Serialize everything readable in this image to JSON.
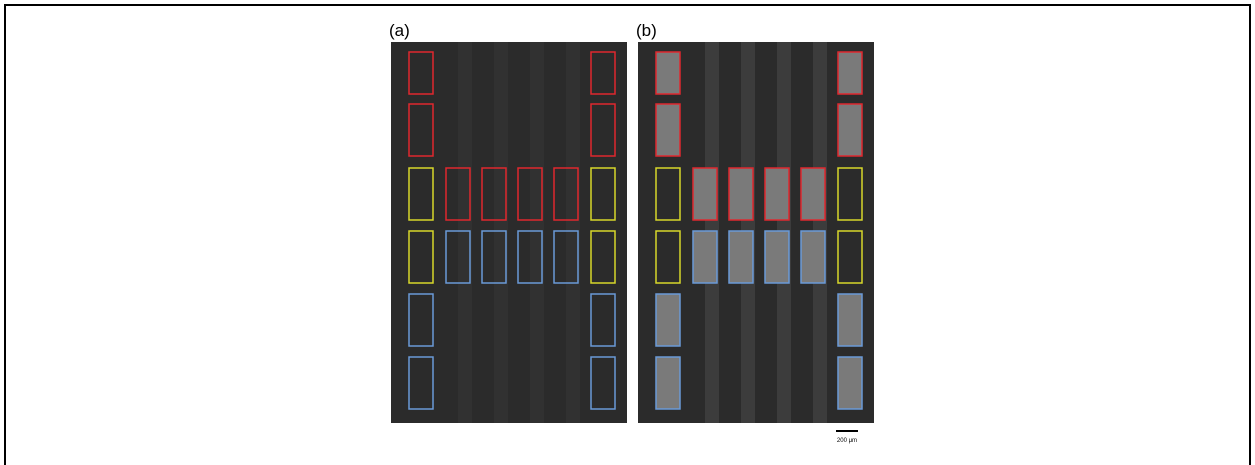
{
  "panels": [
    {
      "label": "(a)"
    },
    {
      "label": "(b)"
    }
  ],
  "scale_bar": {
    "label": "200 μm"
  }
}
